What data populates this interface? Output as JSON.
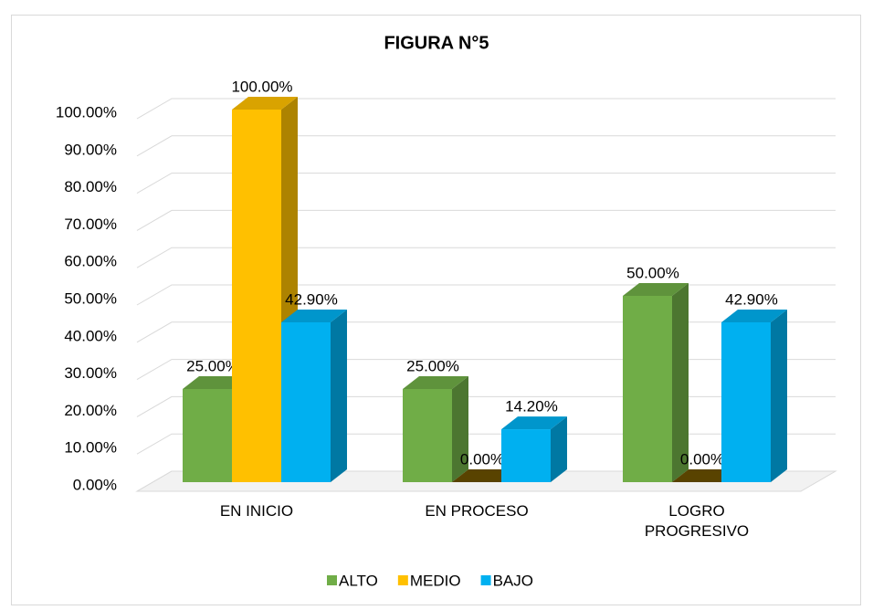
{
  "chart_data": {
    "type": "bar3d",
    "title": "FIGURA N°5",
    "categories": [
      "EN INICIO",
      "EN PROCESO",
      "LOGRO PROGRESIVO"
    ],
    "series": [
      {
        "name": "ALTO",
        "color": "#70ad47",
        "values": [
          25,
          25,
          50
        ],
        "value_labels": [
          "25.00%",
          "25.00%",
          "50.00%"
        ]
      },
      {
        "name": "MEDIO",
        "color": "#ffc000",
        "values": [
          100,
          0,
          0
        ],
        "value_labels": [
          "100.00%",
          "0.00%",
          "0.00%"
        ]
      },
      {
        "name": "BAJO",
        "color": "#00b0f0",
        "values": [
          42.9,
          14.2,
          42.9
        ],
        "value_labels": [
          "42.90%",
          "14.20%",
          "42.90%"
        ]
      }
    ],
    "ylim": [
      0,
      100
    ],
    "yticks": [
      {
        "value": 0,
        "label": "0.00%"
      },
      {
        "value": 10,
        "label": "10.00%"
      },
      {
        "value": 20,
        "label": "20.00%"
      },
      {
        "value": 30,
        "label": "30.00%"
      },
      {
        "value": 40,
        "label": "40.00%"
      },
      {
        "value": 50,
        "label": "50.00%"
      },
      {
        "value": 60,
        "label": "60.00%"
      },
      {
        "value": 70,
        "label": "70.00%"
      },
      {
        "value": 80,
        "label": "80.00%"
      },
      {
        "value": 90,
        "label": "90.00%"
      },
      {
        "value": 100,
        "label": "100.00%"
      }
    ],
    "grid": true,
    "legend": "bottom"
  }
}
